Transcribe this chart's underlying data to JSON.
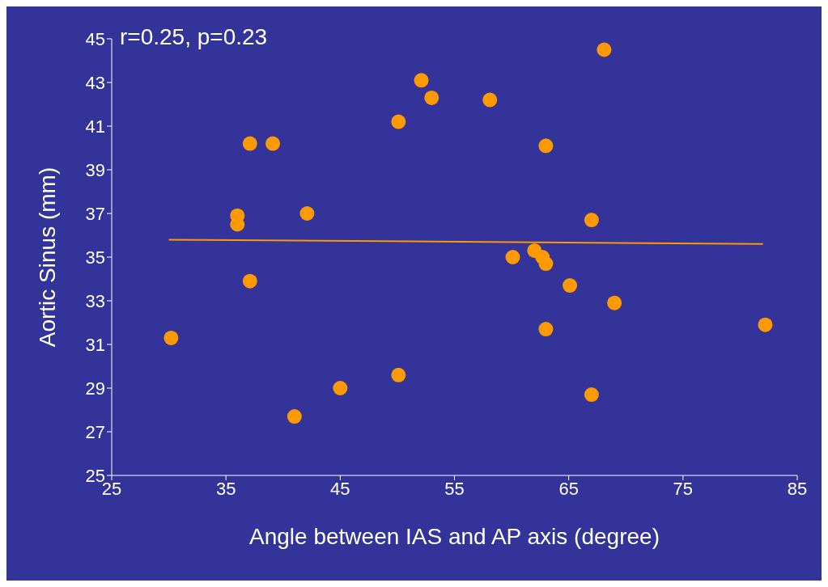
{
  "chart_data": {
    "type": "scatter",
    "xlabel": "Angle between IAS and AP axis (degree)",
    "ylabel": "Aortic Sinus (mm)",
    "annotations": [
      "r=0.25, p=0.23"
    ],
    "xlim": [
      25,
      85
    ],
    "xticks": [
      25,
      35,
      45,
      55,
      65,
      75,
      85
    ],
    "ylim": [
      25,
      45
    ],
    "yticks": [
      25,
      27,
      29,
      31,
      33,
      35,
      37,
      39,
      41,
      43,
      45
    ],
    "grid": false,
    "legend": false,
    "series": [
      {
        "type": "scatter",
        "color": "#ff9900",
        "marker": "circle",
        "x": [
          30.2,
          36,
          36,
          37.1,
          39.1,
          37.1,
          41,
          42.1,
          45,
          50.1,
          50.1,
          52.1,
          53,
          58.1,
          60.1,
          62,
          62.7,
          63,
          63,
          63,
          65.1,
          67,
          67,
          68.1,
          69,
          82.2
        ],
        "values": [
          31.3,
          36.9,
          36.5,
          40.2,
          40.2,
          33.9,
          27.7,
          37,
          29,
          41.2,
          29.6,
          43.1,
          42.3,
          42.2,
          35,
          35.3,
          35,
          34.7,
          40.1,
          31.7,
          33.7,
          36.7,
          28.7,
          44.5,
          32.9,
          31.9
        ]
      },
      {
        "type": "line",
        "color": "#ff9900",
        "marker": "none",
        "x": [
          30,
          82
        ],
        "values": [
          35.8,
          35.6
        ]
      }
    ]
  }
}
